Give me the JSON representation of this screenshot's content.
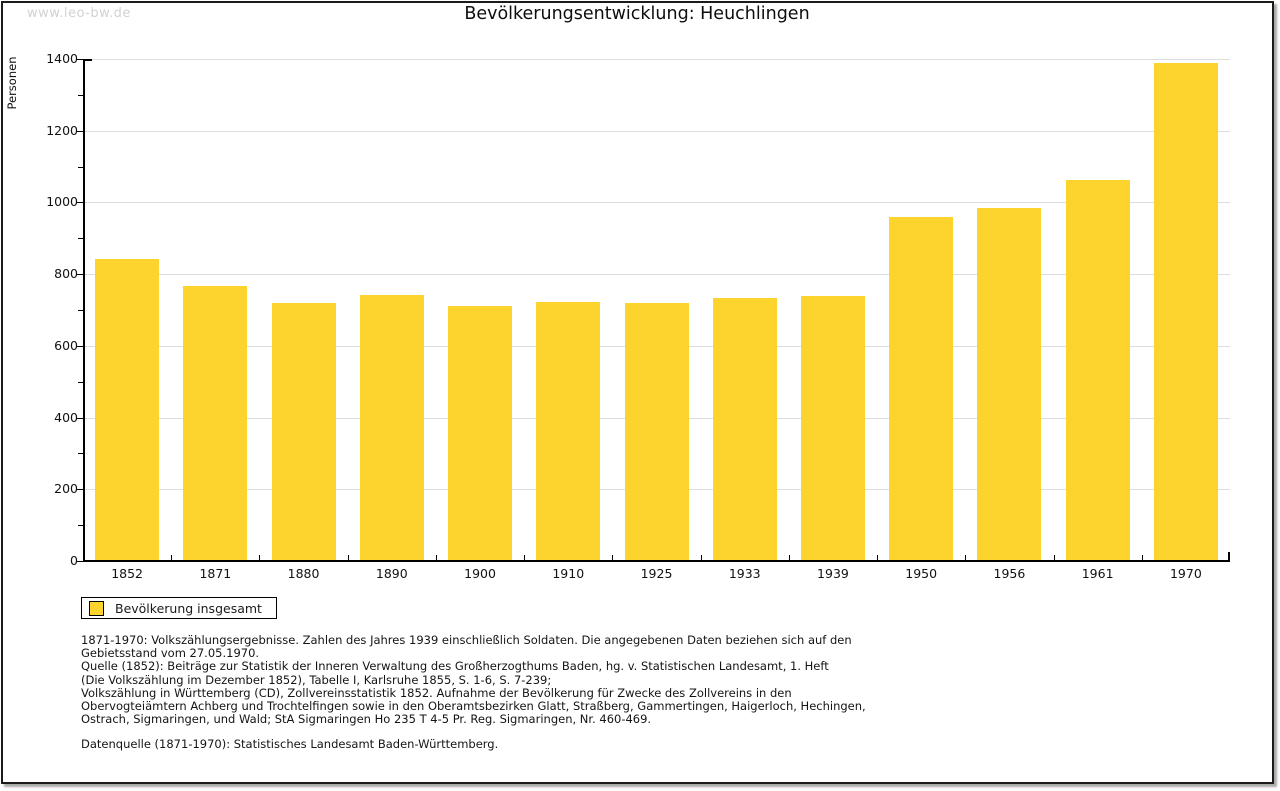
{
  "watermark": "www.leo-bw.de",
  "chart_data": {
    "type": "bar",
    "title": "Bevölkerungsentwicklung: Heuchlingen",
    "xlabel": "",
    "ylabel": "Personen",
    "ylim": [
      0,
      1400
    ],
    "ytick_interval": 200,
    "yminor_interval": 100,
    "grid": true,
    "legend_position": "bottom-left",
    "categories": [
      "1852",
      "1871",
      "1880",
      "1890",
      "1900",
      "1910",
      "1925",
      "1933",
      "1939",
      "1950",
      "1956",
      "1961",
      "1970"
    ],
    "series": [
      {
        "name": "Bevölkerung insgesamt",
        "values": [
          843,
          767,
          720,
          742,
          712,
          723,
          720,
          734,
          740,
          960,
          985,
          1063,
          1390
        ]
      }
    ],
    "bar_color": "#FDD32D"
  },
  "legend": {
    "label": "Bevölkerung insgesamt",
    "swatch_color": "#FDD32D"
  },
  "footer": {
    "lines": [
      "1871-1970: Volkszählungsergebnisse. Zahlen des Jahres 1939 einschließlich Soldaten. Die angegebenen Daten beziehen sich auf den",
      "Gebietsstand vom 27.05.1970.",
      "Quelle (1852): Beiträge zur Statistik der Inneren Verwaltung des Großherzogthums Baden, hg. v. Statistischen Landesamt, 1. Heft",
      "(Die Volkszählung im Dezember 1852), Tabelle I, Karlsruhe 1855, S. 1-6, S. 7-239;",
      "Volkszählung in Württemberg (CD), Zollvereinsstatistik 1852. Aufnahme der Bevölkerung für Zwecke des Zollvereins in den",
      "Obervogteiämtern Achberg und Trochtelfingen sowie in den Oberamtsbezirken Glatt, Straßberg, Gammertingen, Haigerloch, Hechingen,",
      "Ostrach, Sigmaringen, und Wald; StA Sigmaringen Ho 235 T 4-5 Pr. Reg. Sigmaringen, Nr. 460-469."
    ],
    "datasource": "Datenquelle (1871-1970): Statistisches Landesamt Baden-Württemberg."
  },
  "colors": {
    "bar": "#FDD32D",
    "grid": "#DEDEDE",
    "axis": "#000000",
    "watermark": "#D2D2D2",
    "frame_border": "#1B1B1B"
  }
}
